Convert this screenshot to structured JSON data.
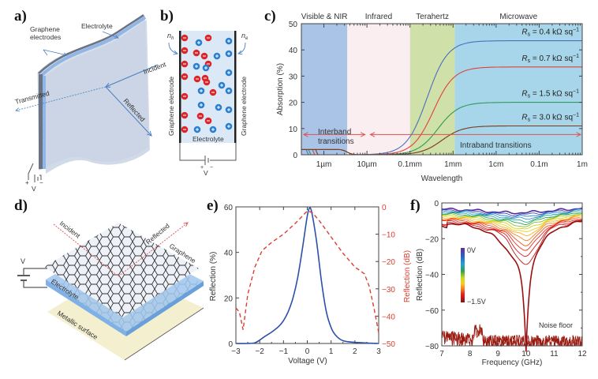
{
  "panels": {
    "a": {
      "label": "a)",
      "labels": {
        "graphene_electrodes_1": "Graphene",
        "graphene_electrodes_2": "electrodes",
        "electrolyte": "Electrolyte",
        "incident": "Incident",
        "transmitted": "Transmitted",
        "reflected": "Reflected",
        "plus": "+",
        "minus": "−",
        "voltage": "V"
      }
    },
    "b": {
      "label": "b)",
      "labels": {
        "n_h": "n",
        "n_h_sub": "h",
        "n_e": "n",
        "n_e_sub": "e",
        "left_electrode": "Graphene electrode",
        "right_electrode": "Graphene electrode",
        "electrolyte": "Electrolyte",
        "plus": "+",
        "minus": "−",
        "voltage": "V"
      },
      "colors": {
        "negative_ion": "#d9262b",
        "positive_ion": "#2a7fd0",
        "electrolyte_bg": "#dbe9f6"
      }
    },
    "d": {
      "label": "d)",
      "labels": {
        "incident": "Incident",
        "reflected": "Reflected",
        "graphene": "Graphene",
        "electrolyte": "Electrolyte",
        "metallic_surface": "Metallic surface",
        "voltage": "V"
      }
    }
  },
  "chart_data": [
    {
      "id": "c",
      "panel_label": "c)",
      "type": "line",
      "title": "",
      "xlabel": "Wavelength",
      "ylabel": "Absorption (%)",
      "xscale": "log",
      "xlim_m": [
        3e-07,
        1
      ],
      "ylim": [
        0,
        50
      ],
      "yticks": [
        0,
        10,
        20,
        30,
        40,
        50
      ],
      "xtick_labels": [
        "1µm",
        "10µm",
        "0.1mm",
        "1mm",
        "1cm",
        "0.1m",
        "1m"
      ],
      "xtick_values_m": [
        1e-06,
        1e-05,
        0.0001,
        0.001,
        0.01,
        0.1,
        1
      ],
      "bands": [
        {
          "name": "Visible & NIR",
          "from_m": 3e-07,
          "to_m": 3.5e-06,
          "color": "#a9c4e6"
        },
        {
          "name": "Infrared",
          "from_m": 3.5e-06,
          "to_m": 0.0001,
          "color": "#fbeef0"
        },
        {
          "name": "Terahertz",
          "from_m": 0.0001,
          "to_m": 0.0011,
          "color": "#cfe0a8"
        },
        {
          "name": "Microwave",
          "from_m": 0.0011,
          "to_m": 1,
          "color": "#a7d6ea"
        }
      ],
      "series": [
        {
          "name": "R_s = 0.4 kΩ sq⁻¹",
          "rs": "0.4",
          "color": "#4a6fc0",
          "plateau": 43.5,
          "midpoint_m": 0.00025
        },
        {
          "name": "R_s = 0.7 kΩ sq⁻¹",
          "rs": "0.7",
          "color": "#e0403a",
          "plateau": 33.5,
          "midpoint_m": 0.00035
        },
        {
          "name": "R_s = 1.5 kΩ sq⁻¹",
          "rs": "1.5",
          "color": "#2e9b57",
          "plateau": 20,
          "midpoint_m": 0.00045
        },
        {
          "name": "R_s = 3.0 kΩ sq⁻¹",
          "rs": "3.0",
          "color": "#7a3a1e",
          "plateau": 11,
          "midpoint_m": 0.00055
        }
      ],
      "interband_level": 2,
      "annotations": {
        "interband_1": "Interband",
        "interband_2": "transitions",
        "intraband": "Intraband transitions",
        "arrow_level": 7.7,
        "rs_prefix": "R",
        "rs_sub": "s",
        "rs_unit": "kΩ sq",
        "rs_exp": "−1"
      }
    },
    {
      "id": "e",
      "panel_label": "e)",
      "type": "line",
      "xlabel": "Voltage (V)",
      "ylabel": "Reflection (%)",
      "y2label": "Reflection (dB)",
      "xlim": [
        -3,
        3
      ],
      "ylim": [
        0,
        60
      ],
      "y2lim": [
        -50,
        0
      ],
      "xticks": [
        -3,
        -2,
        -1,
        0,
        1,
        2,
        3
      ],
      "xtick_labels": [
        "−3",
        "−2",
        "−1",
        "0",
        "1",
        "2",
        "3"
      ],
      "yticks": [
        0,
        20,
        40,
        60
      ],
      "y2ticks": [
        0,
        -10,
        -20,
        -30,
        -40,
        -50
      ],
      "y2tick_labels": [
        "0",
        "−10",
        "−20",
        "−30",
        "−40",
        "−50"
      ],
      "series": [
        {
          "name": "Reflection (%)",
          "axis": "left",
          "style": "solid",
          "color": "#2c4fa8",
          "x": [
            -3,
            -2.5,
            -2.2,
            -2.0,
            -1.8,
            -1.5,
            -1.2,
            -1.0,
            -0.8,
            -0.6,
            -0.4,
            -0.2,
            0,
            0.1,
            0.2,
            0.4,
            0.6,
            0.8,
            1.0,
            1.2,
            1.5,
            2.0,
            2.5,
            3
          ],
          "y": [
            0,
            0,
            0.3,
            1.5,
            3,
            5,
            7.5,
            10,
            14,
            20,
            29,
            42,
            56,
            59.5,
            57,
            44,
            27,
            14,
            7,
            3.5,
            1.2,
            0.5,
            0.2,
            0
          ]
        },
        {
          "name": "Reflection (dB)",
          "axis": "right",
          "style": "dashed",
          "color": "#d9402f",
          "x": [
            -3,
            -2.85,
            -2.7,
            -2.5,
            -2.2,
            -1.9,
            -1.5,
            -1.0,
            -0.5,
            0,
            0.2,
            0.5,
            1.0,
            1.5,
            2.0,
            2.4,
            2.6,
            2.8,
            3
          ],
          "y": [
            -37,
            -38.5,
            -45,
            -32,
            -22,
            -16,
            -13,
            -10,
            -6,
            -1.5,
            -2,
            -5,
            -11,
            -17,
            -22,
            -24.5,
            -29,
            -37,
            -46
          ]
        }
      ]
    },
    {
      "id": "f",
      "panel_label": "f)",
      "type": "line",
      "xlabel": "Frequency (GHz)",
      "ylabel": "Reflection (dB)",
      "xlim": [
        7,
        12
      ],
      "ylim": [
        -80,
        0
      ],
      "xticks": [
        7,
        8,
        9,
        10,
        11,
        12
      ],
      "yticks": [
        0,
        -20,
        -40,
        -60,
        -80
      ],
      "ytick_labels": [
        "0",
        "−20",
        "−40",
        "−60",
        "−80"
      ],
      "colorbar": {
        "top_label": "0V",
        "bottom_label": "−1.5V",
        "colors": [
          "#6a2a9a",
          "#2a5fc0",
          "#2aa0d0",
          "#2aa050",
          "#b8d020",
          "#f0e020",
          "#f8a020",
          "#e83020",
          "#e01818",
          "#9a1010"
        ]
      },
      "series_count": 16,
      "series_description": "Reflection spectra for bias from 0 V (top, violet) to −1.5 V (bottom, dark red); resonance dip near 10 GHz deepening to about −65 dB",
      "curve_params": {
        "baseline_top": -3.5,
        "baseline_bottom": -11,
        "dip_center_ghz": 10.0,
        "dip_depths": [
          0,
          0.3,
          0.6,
          1,
          1.5,
          2,
          2.8,
          3.6,
          4.5,
          5.5,
          7,
          9,
          11,
          14,
          18,
          52
        ]
      },
      "noise_floor": {
        "label": "Noise floor",
        "level": -76,
        "color": "#9a1a10"
      }
    }
  ]
}
